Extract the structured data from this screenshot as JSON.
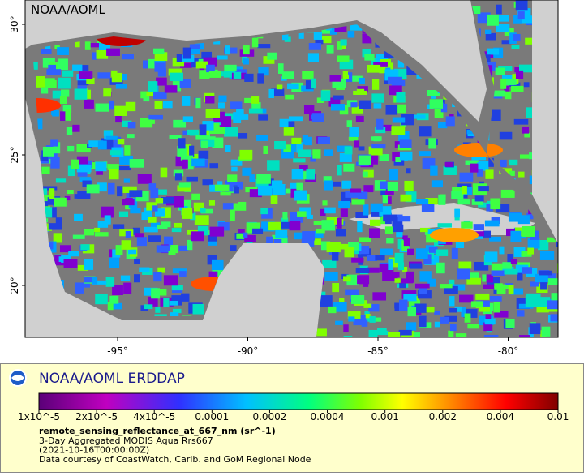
{
  "map": {
    "watermark": "NOAA/AOML",
    "lat_labels": [
      "30°",
      "25°",
      "20°"
    ],
    "lon_labels": [
      "-95°",
      "-90°",
      "-85°",
      "-80°"
    ]
  },
  "legend": {
    "title": "NOAA/AOML ERDDAP",
    "colorbar_labels": [
      "1x10^-5",
      "2x10^-5",
      "4x10^-5",
      "0.0001",
      "0.0002",
      "0.0004",
      "0.001",
      "0.002",
      "0.004",
      "0.01"
    ],
    "variable": "remote_sensing_reflectance_at_667_nm (sr^-1)",
    "lines": [
      "3-Day Aggregated MODIS Aqua Rrs667",
      "(2021-10-16T00:00:00Z)",
      "Data courtesy of CoastWatch, Carib. and GoM Regional Node"
    ]
  }
}
